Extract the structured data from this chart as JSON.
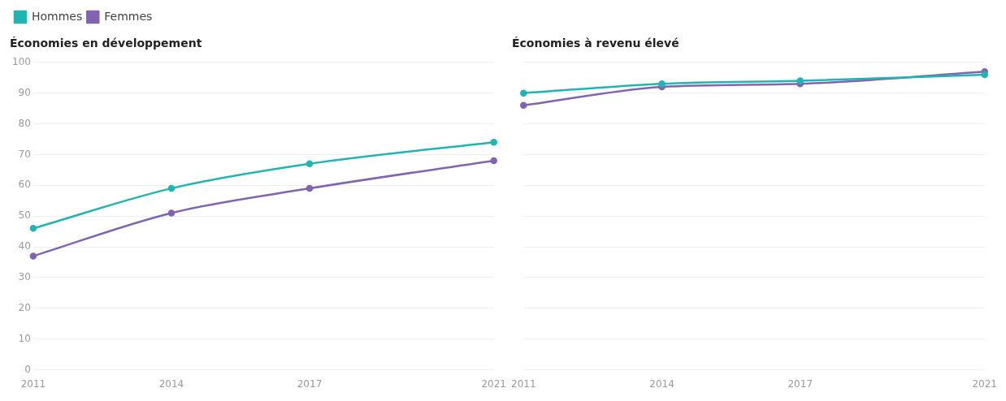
{
  "chart_data": [
    {
      "type": "line",
      "title": "Économies en développement",
      "x": [
        2011,
        2014,
        2017,
        2021
      ],
      "xlim": [
        2011,
        2021
      ],
      "xticks": [
        2011,
        2014,
        2017,
        2021
      ],
      "ylim": [
        0,
        100
      ],
      "yticks": [
        0,
        10,
        20,
        30,
        40,
        50,
        60,
        70,
        80,
        90,
        100
      ],
      "grid": "y",
      "legend": "top left",
      "marker": "circle",
      "line_style": "solid",
      "series": [
        {
          "name": "Hommes",
          "color": "#1fb5b5",
          "values": [
            46,
            59,
            67,
            74
          ]
        },
        {
          "name": "Femmes",
          "color": "#8064b0",
          "values": [
            37,
            51,
            59,
            68
          ]
        }
      ]
    },
    {
      "type": "line",
      "title": "Économies à revenu élevé",
      "x": [
        2011,
        2014,
        2017,
        2021
      ],
      "xlim": [
        2011,
        2021
      ],
      "xticks": [
        2011,
        2014,
        2017,
        2021
      ],
      "ylim": [
        0,
        100
      ],
      "yticks": [
        0,
        10,
        20,
        30,
        40,
        50,
        60,
        70,
        80,
        90,
        100
      ],
      "grid": "y",
      "tick_labels": "x",
      "marker": "circle",
      "line_style": "solid",
      "series": [
        {
          "color": "#1fb5b5",
          "values": [
            90,
            93,
            94,
            96
          ]
        },
        {
          "color": "#8064b0",
          "values": [
            86,
            92,
            93,
            97
          ]
        }
      ]
    }
  ]
}
